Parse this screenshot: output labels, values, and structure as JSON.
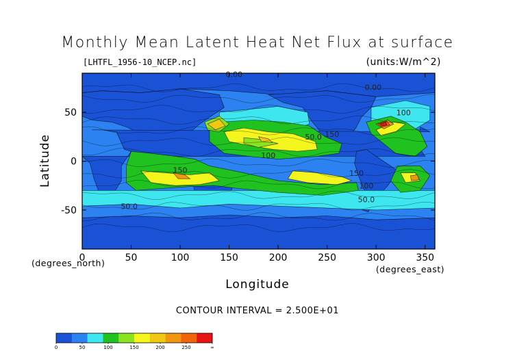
{
  "chart_data": {
    "type": "heatmap",
    "title": "Monthly Mean Latent Heat Net Flux at surface",
    "file_label": "[LHTFL_1956-10_NCEP.nc]",
    "units_label": "(units:W/m^2)",
    "xlabel": "Longitude",
    "ylabel": "Latitude",
    "x_unit_label": "(degrees_east)",
    "y_unit_label": "(degrees_north)",
    "xlim": [
      0,
      360
    ],
    "ylim": [
      -90,
      90
    ],
    "x_ticks": [
      0,
      50,
      100,
      150,
      200,
      250,
      300,
      350
    ],
    "y_ticks": [
      50,
      0,
      -50
    ],
    "contour_interval_text": "CONTOUR INTERVAL = 2.500E+01",
    "contour_labels": [
      {
        "text": "0.00",
        "lon": 155,
        "lat": 86
      },
      {
        "text": "0.00",
        "lon": 297,
        "lat": 73
      },
      {
        "text": "100",
        "lon": 328,
        "lat": 47
      },
      {
        "text": "150",
        "lon": 255,
        "lat": 25
      },
      {
        "text": "50.0",
        "lon": 236,
        "lat": 22
      },
      {
        "text": "100",
        "lon": 190,
        "lat": 3
      },
      {
        "text": "150",
        "lon": 100,
        "lat": -12
      },
      {
        "text": "150",
        "lon": 280,
        "lat": -15
      },
      {
        "text": "100",
        "lon": 290,
        "lat": -28
      },
      {
        "text": "50.0",
        "lon": 290,
        "lat": -42
      },
      {
        "text": "50.0",
        "lon": 48,
        "lat": -49
      }
    ],
    "colorbar": {
      "levels": [
        "0",
        "50",
        "100",
        "150",
        "200",
        "250",
        "∞"
      ],
      "colors": [
        "#1a52d6",
        "#2b82f0",
        "#3ee6f0",
        "#1fc21f",
        "#8ce21c",
        "#f5f51e",
        "#f0c814",
        "#f0960f",
        "#f0640a",
        "#e61414"
      ]
    },
    "field_colors": {
      "very_low": "#1a52d6",
      "low": "#2b82f0",
      "low_mid": "#3ee6f0",
      "mid": "#1fc21f",
      "mid_high": "#8ce21c",
      "high": "#f5f51e",
      "higher": "#f0c814",
      "orange": "#f0960f",
      "deep_orange": "#f0640a",
      "max": "#e61414"
    }
  }
}
